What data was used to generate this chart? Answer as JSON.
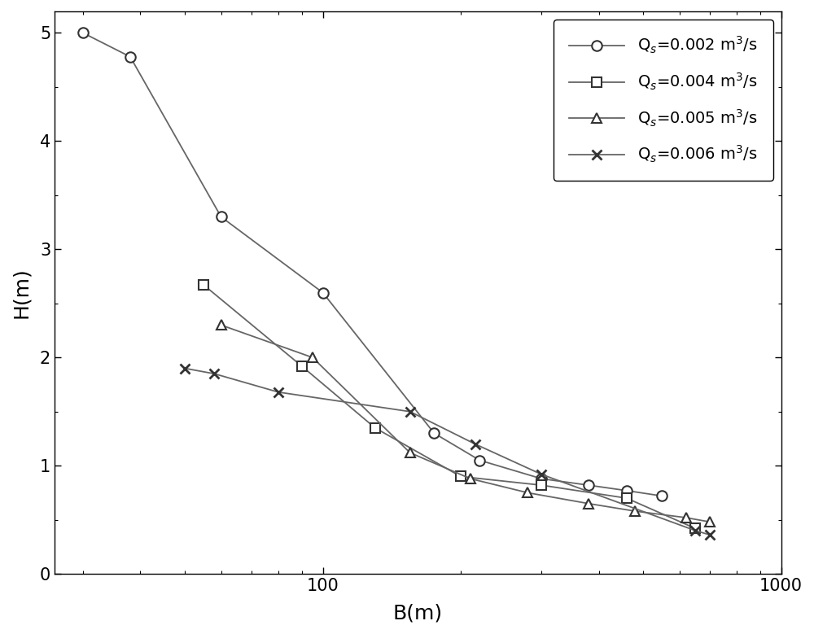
{
  "series": [
    {
      "label": "Q$_s$=0.002 m$^3$/s",
      "marker": "o",
      "B": [
        30,
        38,
        60,
        100,
        175,
        220,
        300,
        380,
        460,
        550
      ],
      "H": [
        5.0,
        4.78,
        3.3,
        2.6,
        1.3,
        1.05,
        0.88,
        0.82,
        0.77,
        0.72
      ]
    },
    {
      "label": "Q$_s$=0.004 m$^3$/s",
      "marker": "s",
      "B": [
        55,
        90,
        130,
        200,
        300,
        460,
        650
      ],
      "H": [
        2.67,
        1.92,
        1.35,
        0.9,
        0.82,
        0.7,
        0.42
      ]
    },
    {
      "label": "Q$_s$=0.005 m$^3$/s",
      "marker": "^",
      "B": [
        60,
        95,
        155,
        210,
        280,
        380,
        480,
        620,
        700
      ],
      "H": [
        2.3,
        2.0,
        1.12,
        0.88,
        0.75,
        0.65,
        0.58,
        0.52,
        0.48
      ]
    },
    {
      "label": "Q$_s$=0.006 m$^3$/s",
      "marker": "x",
      "B": [
        50,
        58,
        80,
        155,
        215,
        300,
        650,
        700
      ],
      "H": [
        1.9,
        1.85,
        1.68,
        1.5,
        1.2,
        0.92,
        0.4,
        0.36
      ]
    }
  ],
  "xlabel": "B(m)",
  "ylabel": "H(m)",
  "ylim": [
    0,
    5.2
  ],
  "xlim": [
    26,
    1000
  ],
  "yticks": [
    0,
    1,
    2,
    3,
    4,
    5
  ],
  "background_color": "#ffffff",
  "line_color": "#666666",
  "marker_color": "#333333",
  "marker_size": 9,
  "line_width": 1.3,
  "font_size_label": 18,
  "font_size_tick": 15,
  "font_size_legend": 14
}
